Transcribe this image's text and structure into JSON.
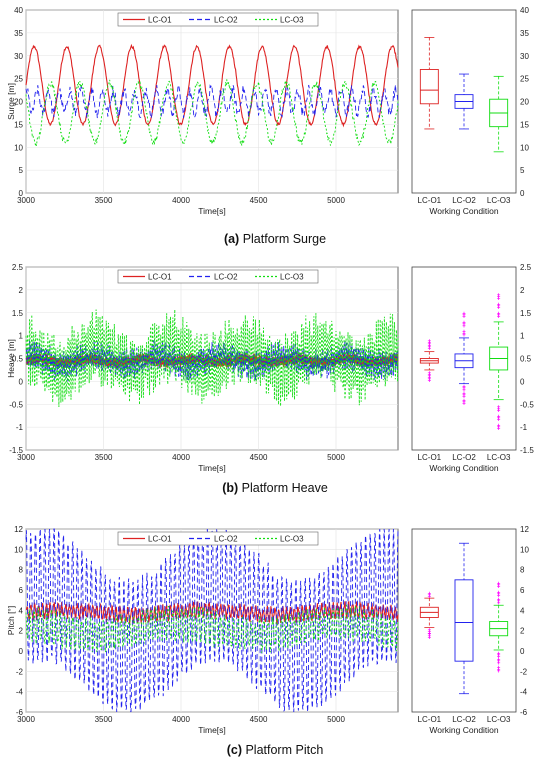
{
  "legend_styles": [
    {
      "color": "#dd2222",
      "dash": "none"
    },
    {
      "color": "#2222ee",
      "dash": "5,3"
    },
    {
      "color": "#11dd11",
      "dash": "2,2"
    }
  ],
  "outlier_color": "#ff00ff",
  "chart_data": [
    {
      "type": "line",
      "caption_letter": "(a)",
      "caption_text": "Platform Surge",
      "ylabel": "Surge [m]",
      "xlabel": "Time[s]",
      "xlim": [
        3000,
        5400
      ],
      "xticks": [
        "3000",
        "3500",
        "4000",
        "4500",
        "5000"
      ],
      "ylim": [
        0,
        40
      ],
      "yticks": [
        "0",
        "5",
        "10",
        "15",
        "20",
        "25",
        "30",
        "35",
        "40"
      ],
      "grid": true,
      "legend_position": "top",
      "series": [
        {
          "name": "LC-O1",
          "color": "#dd2222",
          "mean": 23.5,
          "amp": 8.5,
          "period": 210,
          "noise": 0.3
        },
        {
          "name": "LC-O2",
          "color": "#2222ee",
          "mean": 20.0,
          "amp": 2.5,
          "period": 70,
          "noise": 1.2
        },
        {
          "name": "LC-O3",
          "color": "#11dd11",
          "mean": 17.5,
          "amp": 6.5,
          "period": 190,
          "noise": 0.8
        }
      ],
      "box": {
        "xlabel": "Working Condition",
        "categories": [
          "LC-O1",
          "LC-O2",
          "LC-O3"
        ],
        "colors": [
          "#dd2222",
          "#2222ee",
          "#11dd11"
        ],
        "stats": [
          {
            "min": 14,
            "q1": 19.5,
            "median": 22.5,
            "q3": 27,
            "max": 34,
            "outliers_low": [],
            "outliers_high": []
          },
          {
            "min": 14,
            "q1": 18.5,
            "median": 20,
            "q3": 21.5,
            "max": 26,
            "outliers_low": [],
            "outliers_high": []
          },
          {
            "min": 9,
            "q1": 14.5,
            "median": 17.5,
            "q3": 20.5,
            "max": 25.5,
            "outliers_low": [],
            "outliers_high": []
          }
        ]
      }
    },
    {
      "type": "line",
      "caption_letter": "(b)",
      "caption_text": "Platform Heave",
      "ylabel": "Heave [m]",
      "xlabel": "Time[s]",
      "xlim": [
        3000,
        5400
      ],
      "xticks": [
        "3000",
        "3500",
        "4000",
        "4500",
        "5000"
      ],
      "ylim": [
        -1.5,
        2.5
      ],
      "yticks": [
        "-1.5",
        "-1",
        "-0.5",
        "0",
        "0.5",
        "1",
        "1.5",
        "2",
        "2.5"
      ],
      "grid": true,
      "legend_position": "top",
      "series": [
        {
          "name": "LC-O1",
          "color": "#dd2222",
          "mean": 0.45,
          "amp": 0.1,
          "period": 9,
          "noise": 0.05
        },
        {
          "name": "LC-O2",
          "color": "#2222ee",
          "mean": 0.45,
          "amp": 0.25,
          "period": 11,
          "noise": 0.12
        },
        {
          "name": "LC-O3",
          "color": "#11dd11",
          "mean": 0.5,
          "amp": 0.6,
          "period": 13,
          "noise": 0.25
        }
      ],
      "box": {
        "xlabel": "Working Condition",
        "categories": [
          "LC-O1",
          "LC-O2",
          "LC-O3"
        ],
        "colors": [
          "#dd2222",
          "#2222ee",
          "#11dd11"
        ],
        "stats": [
          {
            "min": 0.25,
            "q1": 0.4,
            "median": 0.45,
            "q3": 0.5,
            "max": 0.65,
            "outliers_low": [
              0.05,
              0.15
            ],
            "outliers_high": [
              0.75,
              0.85
            ]
          },
          {
            "min": -0.05,
            "q1": 0.3,
            "median": 0.45,
            "q3": 0.6,
            "max": 0.95,
            "outliers_low": [
              -0.45,
              -0.3,
              -0.15
            ],
            "outliers_high": [
              1.05,
              1.25,
              1.45
            ]
          },
          {
            "min": -0.4,
            "q1": 0.25,
            "median": 0.5,
            "q3": 0.75,
            "max": 1.3,
            "outliers_low": [
              -1.0,
              -0.8,
              -0.6
            ],
            "outliers_high": [
              1.45,
              1.65,
              1.85
            ]
          }
        ]
      }
    },
    {
      "type": "line",
      "caption_letter": "(c)",
      "caption_text": "Platform Pitch",
      "ylabel": "Pitch [°]",
      "xlabel": "Time[s]",
      "xlim": [
        3000,
        5400
      ],
      "xticks": [
        "3000",
        "3500",
        "4000",
        "4500",
        "5000"
      ],
      "ylim": [
        -6,
        12
      ],
      "yticks": [
        "-6",
        "-4",
        "-2",
        "0",
        "2",
        "4",
        "6",
        "8",
        "10",
        "12"
      ],
      "grid": true,
      "legend_position": "top",
      "series": [
        {
          "name": "LC-O1",
          "color": "#dd2222",
          "mean": 3.8,
          "amp": 0.6,
          "period": 25,
          "noise": 0.3
        },
        {
          "name": "LC-O2",
          "color": "#2222ee",
          "mean": 3.0,
          "amp": 6.5,
          "period": 30,
          "noise": 0.5
        },
        {
          "name": "LC-O3",
          "color": "#11dd11",
          "mean": 2.2,
          "amp": 1.4,
          "period": 28,
          "noise": 0.5
        }
      ],
      "box": {
        "xlabel": "Working Condition",
        "categories": [
          "LC-O1",
          "LC-O2",
          "LC-O3"
        ],
        "colors": [
          "#dd2222",
          "#2222ee",
          "#11dd11"
        ],
        "stats": [
          {
            "min": 2.3,
            "q1": 3.3,
            "median": 3.8,
            "q3": 4.3,
            "max": 5.2,
            "outliers_low": [
              1.5,
              1.9
            ],
            "outliers_high": [
              5.5
            ]
          },
          {
            "min": -4.2,
            "q1": -1.0,
            "median": 2.8,
            "q3": 7.0,
            "max": 10.6,
            "outliers_low": [],
            "outliers_high": []
          },
          {
            "min": 0.1,
            "q1": 1.5,
            "median": 2.2,
            "q3": 2.9,
            "max": 4.5,
            "outliers_low": [
              -1.8,
              -1.0,
              -0.4
            ],
            "outliers_high": [
              4.9,
              5.6,
              6.5
            ]
          }
        ]
      }
    }
  ]
}
